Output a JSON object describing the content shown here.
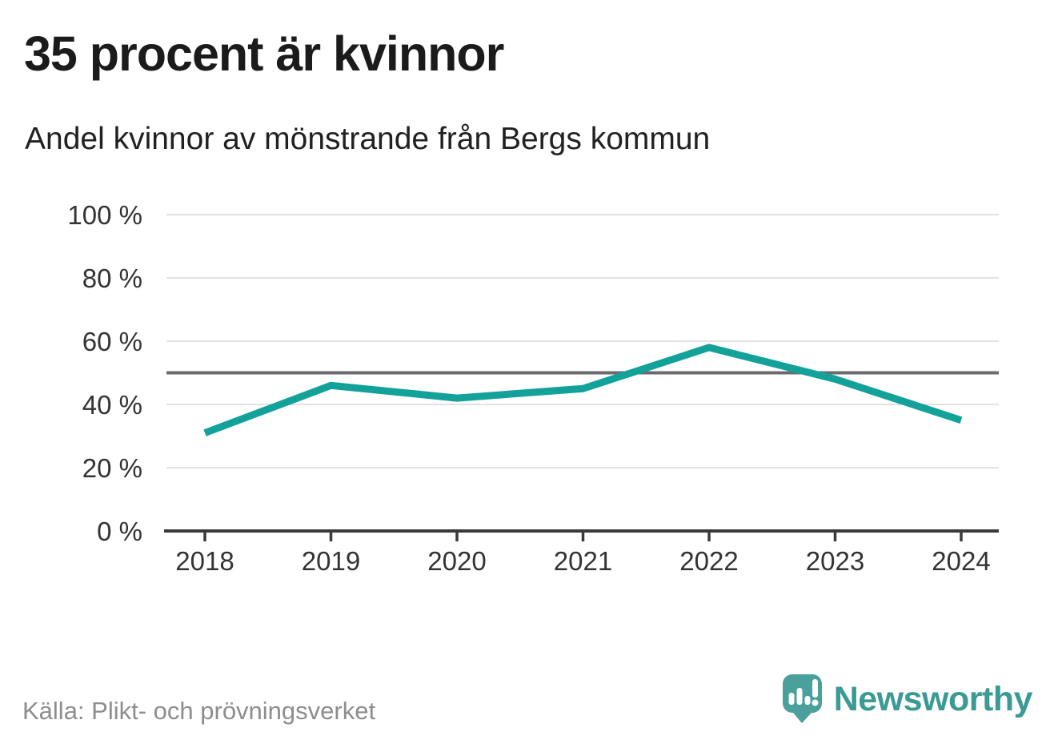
{
  "header": {
    "title": "35 procent är kvinnor",
    "subtitle": "Andel kvinnor av mönstrande från Bergs kommun"
  },
  "chart_data": {
    "type": "line",
    "title": "35 procent är kvinnor",
    "subtitle": "Andel kvinnor av mönstrande från Bergs kommun",
    "categories": [
      "2018",
      "2019",
      "2020",
      "2021",
      "2022",
      "2023",
      "2024"
    ],
    "series": [
      {
        "name": "Andel kvinnor av mönstrande",
        "values": [
          31,
          46,
          42,
          45,
          58,
          48,
          35
        ]
      }
    ],
    "unit": "%",
    "ylim": [
      0,
      100
    ],
    "yticks": [
      0,
      20,
      40,
      60,
      80,
      100
    ],
    "ytick_suffix": " %",
    "reference_line_y": 50,
    "grid": true,
    "legend": false,
    "xlabel": "",
    "ylabel": ""
  },
  "colors": {
    "line": "#13a29a",
    "reference": "#6b6b6f",
    "grid": "#e2e2e2",
    "axis": "#3a3a3a",
    "tick_label": "#333333",
    "logo_bubble": "#4aa09a",
    "brand_text": "#3b9a94"
  },
  "footer": {
    "source": "Källa: Plikt- och prövningsverket",
    "brand": "Newsworthy"
  }
}
